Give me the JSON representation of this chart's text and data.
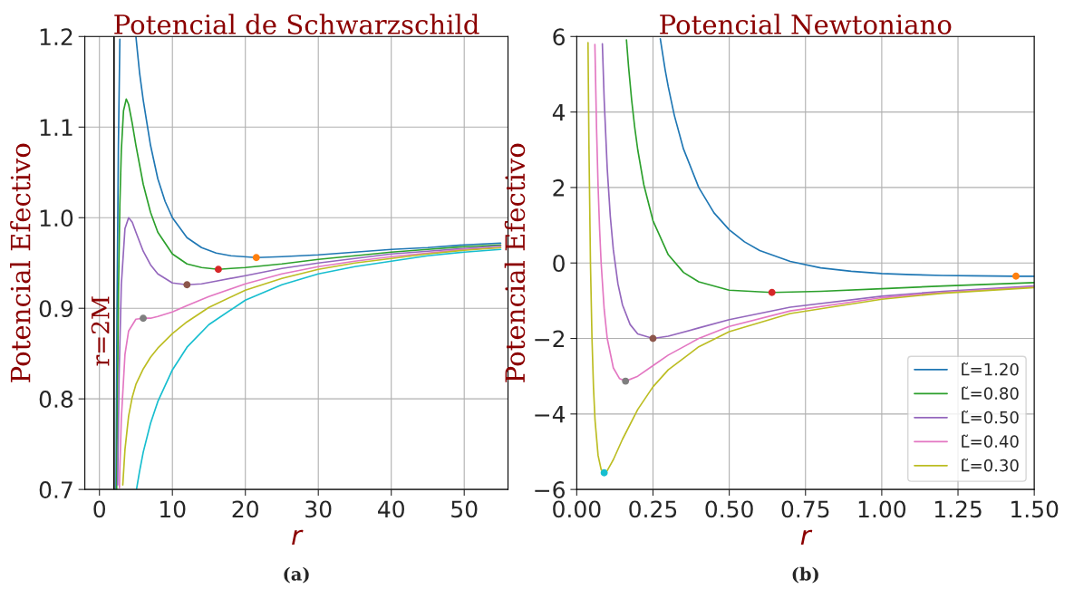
{
  "chart_data": [
    {
      "type": "line",
      "title": "Potencial de Schwarzschild",
      "xlabel": "r",
      "ylabel": "Potencial Efectivo",
      "xlim": [
        -2,
        56
      ],
      "ylim": [
        0.7,
        1.2
      ],
      "xticks": [
        0,
        10,
        20,
        30,
        40,
        50
      ],
      "yticks": [
        0.7,
        0.8,
        0.9,
        {
          "value": 1,
          "label": "1.0"
        },
        1.1,
        1.2
      ],
      "grid": true,
      "legend": false,
      "ref_lines": [
        {
          "axis": "x",
          "value": 2,
          "label": "r=2M",
          "color": "#000000"
        }
      ],
      "annotations": [
        "(a)"
      ],
      "series": [
        {
          "type": "line",
          "color": "#1f77b4",
          "x": [
            2.27,
            2.4,
            2.6,
            2.8,
            4,
            5,
            5.5,
            6,
            7,
            8,
            9,
            10,
            12,
            14,
            16,
            18,
            21.5,
            25,
            30,
            35,
            40,
            45,
            50,
            55
          ],
          "values": [
            0.7,
            0.89,
            1.08,
            1.197,
            null,
            1.2,
            1.16,
            1.13,
            1.08,
            1.043,
            1.018,
            1.0,
            0.978,
            0.967,
            0.961,
            0.958,
            0.956,
            0.957,
            0.959,
            0.962,
            0.965,
            0.967,
            0.97,
            0.972
          ]
        },
        {
          "type": "line",
          "color": "#2ca02c",
          "x": [
            2.36,
            2.4,
            2.6,
            2.8,
            3.0,
            3.3,
            3.68,
            4.0,
            4.5,
            5,
            6,
            7,
            8,
            10,
            12,
            14,
            16.3,
            18,
            20,
            25,
            30,
            35,
            40,
            45,
            50,
            55
          ],
          "values": [
            0.7,
            0.745,
            0.914,
            1.015,
            1.074,
            1.118,
            1.131,
            1.125,
            1.104,
            1.08,
            1.037,
            1.006,
            0.984,
            0.96,
            0.949,
            0.945,
            0.943,
            0.944,
            0.945,
            0.949,
            0.954,
            0.958,
            0.962,
            0.965,
            0.968,
            0.97
          ]
        },
        {
          "type": "line",
          "color": "#9467bd",
          "x": [
            2.49,
            2.7,
            3,
            3.5,
            4,
            4.5,
            5,
            6,
            7,
            8,
            10,
            12,
            14,
            16,
            20,
            25,
            30,
            35,
            40,
            45,
            50,
            55
          ],
          "values": [
            0.705,
            0.828,
            0.926,
            0.988,
            1.0,
            0.995,
            0.984,
            0.963,
            0.948,
            0.938,
            0.928,
            0.926,
            0.927,
            0.93,
            0.936,
            0.944,
            0.95,
            0.955,
            0.96,
            0.963,
            0.966,
            0.969
          ]
        },
        {
          "type": "line",
          "color": "#e377c2",
          "x": [
            2.74,
            2.8,
            3,
            3.5,
            4,
            5,
            6,
            7,
            8,
            10,
            12,
            15,
            20,
            25,
            30,
            35,
            40,
            45,
            50,
            55
          ],
          "values": [
            0.702,
            0.723,
            0.778,
            0.849,
            0.875,
            0.888,
            0.889,
            0.889,
            0.891,
            0.896,
            0.903,
            0.913,
            0.927,
            0.938,
            0.946,
            0.952,
            0.957,
            0.961,
            0.965,
            0.967
          ]
        },
        {
          "type": "line",
          "color": "#bcbd22",
          "x": [
            3.2,
            3.5,
            4,
            4.5,
            5,
            6,
            7,
            8,
            10,
            12,
            15,
            20,
            25,
            30,
            35,
            40,
            45,
            50,
            55
          ],
          "values": [
            0.705,
            0.744,
            0.781,
            0.802,
            0.816,
            0.833,
            0.846,
            0.856,
            0.872,
            0.885,
            0.901,
            0.92,
            0.933,
            0.943,
            0.95,
            0.955,
            0.96,
            0.964,
            0.967
          ]
        },
        {
          "type": "line",
          "color": "#17becf",
          "x": [
            5.1,
            5.5,
            6,
            7,
            8,
            10,
            12,
            15,
            20,
            25,
            30,
            35,
            40,
            45,
            50,
            55
          ],
          "values": [
            0.701,
            0.72,
            0.741,
            0.773,
            0.797,
            0.832,
            0.857,
            0.882,
            0.909,
            0.926,
            0.938,
            0.946,
            0.952,
            0.958,
            0.962,
            0.965
          ]
        },
        {
          "type": "scatter",
          "marker": "circle",
          "color": "#ff7f0e",
          "x": [
            21.5
          ],
          "values": [
            0.956
          ]
        },
        {
          "type": "scatter",
          "marker": "circle",
          "color": "#d62728",
          "x": [
            16.3
          ],
          "values": [
            0.943
          ]
        },
        {
          "type": "scatter",
          "marker": "circle",
          "color": "#8c564b",
          "x": [
            12
          ],
          "values": [
            0.926
          ]
        },
        {
          "type": "scatter",
          "marker": "circle",
          "color": "#7f7f7f",
          "x": [
            6
          ],
          "values": [
            0.889
          ]
        }
      ]
    },
    {
      "type": "line",
      "title": "Potencial Newtoniano",
      "xlabel": "r",
      "ylabel": "Potencial Efectivo",
      "xlim": [
        0,
        1.5
      ],
      "ylim": [
        -6,
        6
      ],
      "xticks": [
        {
          "value": 0,
          "label": "0.00"
        },
        {
          "value": 0.25,
          "label": "0.25"
        },
        {
          "value": 0.5,
          "label": "0.50"
        },
        {
          "value": 0.75,
          "label": "0.75"
        },
        {
          "value": 1,
          "label": "1.00"
        },
        {
          "value": 1.25,
          "label": "1.25"
        },
        {
          "value": 1.5,
          "label": "1.50"
        }
      ],
      "yticks": [
        {
          "value": -6,
          "label": "−6"
        },
        {
          "value": -4,
          "label": "−4"
        },
        {
          "value": -2,
          "label": "−2"
        },
        0,
        2,
        4,
        6
      ],
      "grid": true,
      "legend": "lower right",
      "annotations": [
        "(b)"
      ],
      "series": [
        {
          "type": "line",
          "name": "L̃=1.20",
          "color": "#1f77b4",
          "x": [
            0.274,
            0.29,
            0.3,
            0.32,
            0.35,
            0.4,
            0.45,
            0.5,
            0.55,
            0.6,
            0.7,
            0.8,
            0.9,
            1.0,
            1.1,
            1.2,
            1.3,
            1.44,
            1.5
          ],
          "values": [
            5.94,
            5.11,
            4.67,
            3.91,
            3.02,
            2.0,
            1.33,
            0.88,
            0.56,
            0.33,
            0.04,
            -0.13,
            -0.22,
            -0.28,
            -0.31,
            -0.33,
            -0.34,
            -0.35,
            -0.35
          ]
        },
        {
          "type": "line",
          "name": "L̃=0.80",
          "color": "#2ca02c",
          "x": [
            0.163,
            0.17,
            0.18,
            0.19,
            0.2,
            0.22,
            0.25,
            0.3,
            0.35,
            0.4,
            0.5,
            0.64,
            0.8,
            1.0,
            1.2,
            1.5
          ],
          "values": [
            5.91,
            5.19,
            4.32,
            3.6,
            3.0,
            2.07,
            1.12,
            0.22,
            -0.25,
            -0.5,
            -0.72,
            -0.78,
            -0.75,
            -0.68,
            -0.61,
            -0.52
          ]
        },
        {
          "type": "line",
          "name": "L̃=0.50",
          "color": "#9467bd",
          "x": [
            0.084,
            0.09,
            0.1,
            0.11,
            0.12,
            0.135,
            0.15,
            0.175,
            0.2,
            0.25,
            0.3,
            0.4,
            0.5,
            0.7,
            1.0,
            1.2,
            1.5
          ],
          "values": [
            5.81,
            4.32,
            2.5,
            1.24,
            0.35,
            -0.55,
            -1.11,
            -1.63,
            -1.88,
            -2.0,
            -1.94,
            -1.72,
            -1.5,
            -1.17,
            -0.88,
            -0.75,
            -0.61
          ]
        },
        {
          "type": "line",
          "name": "L̃=0.40",
          "color": "#e377c2",
          "x": [
            0.0595,
            0.065,
            0.07,
            0.075,
            0.08,
            0.09,
            0.1,
            0.12,
            0.14,
            0.16,
            0.2,
            0.25,
            0.3,
            0.4,
            0.5,
            0.7,
            1.0,
            1.2,
            1.5
          ],
          "values": [
            5.79,
            3.55,
            2.04,
            0.89,
            0.0,
            -1.23,
            -2.0,
            -2.78,
            -3.06,
            -3.13,
            -3.0,
            -2.72,
            -2.44,
            -2.0,
            -1.68,
            -1.27,
            -0.92,
            -0.78,
            -0.63
          ]
        },
        {
          "type": "line",
          "name": "L̃=0.30",
          "color": "#bcbd22",
          "x": [
            0.037,
            0.04,
            0.045,
            0.05,
            0.055,
            0.06,
            0.07,
            0.08,
            0.09,
            0.1,
            0.12,
            0.15,
            0.2,
            0.25,
            0.3,
            0.4,
            0.5,
            0.7,
            1.0,
            1.2,
            1.5
          ],
          "values": [
            5.84,
            3.13,
            0.0,
            -2.0,
            -3.31,
            -4.17,
            -5.1,
            -5.47,
            -5.56,
            -5.5,
            -5.21,
            -4.67,
            -3.88,
            -3.28,
            -2.83,
            -2.22,
            -1.82,
            -1.34,
            -0.96,
            -0.8,
            -0.65
          ]
        },
        {
          "type": "scatter",
          "marker": "circle",
          "color": "#ff7f0e",
          "x": [
            1.44
          ],
          "values": [
            -0.35
          ]
        },
        {
          "type": "scatter",
          "marker": "circle",
          "color": "#d62728",
          "x": [
            0.64
          ],
          "values": [
            -0.78
          ]
        },
        {
          "type": "scatter",
          "marker": "circle",
          "color": "#8c564b",
          "x": [
            0.25
          ],
          "values": [
            -2.0
          ]
        },
        {
          "type": "scatter",
          "marker": "circle",
          "color": "#7f7f7f",
          "x": [
            0.16
          ],
          "values": [
            -3.13
          ]
        },
        {
          "type": "scatter",
          "marker": "circle",
          "color": "#17becf",
          "x": [
            0.09
          ],
          "values": [
            -5.56
          ]
        }
      ]
    }
  ]
}
